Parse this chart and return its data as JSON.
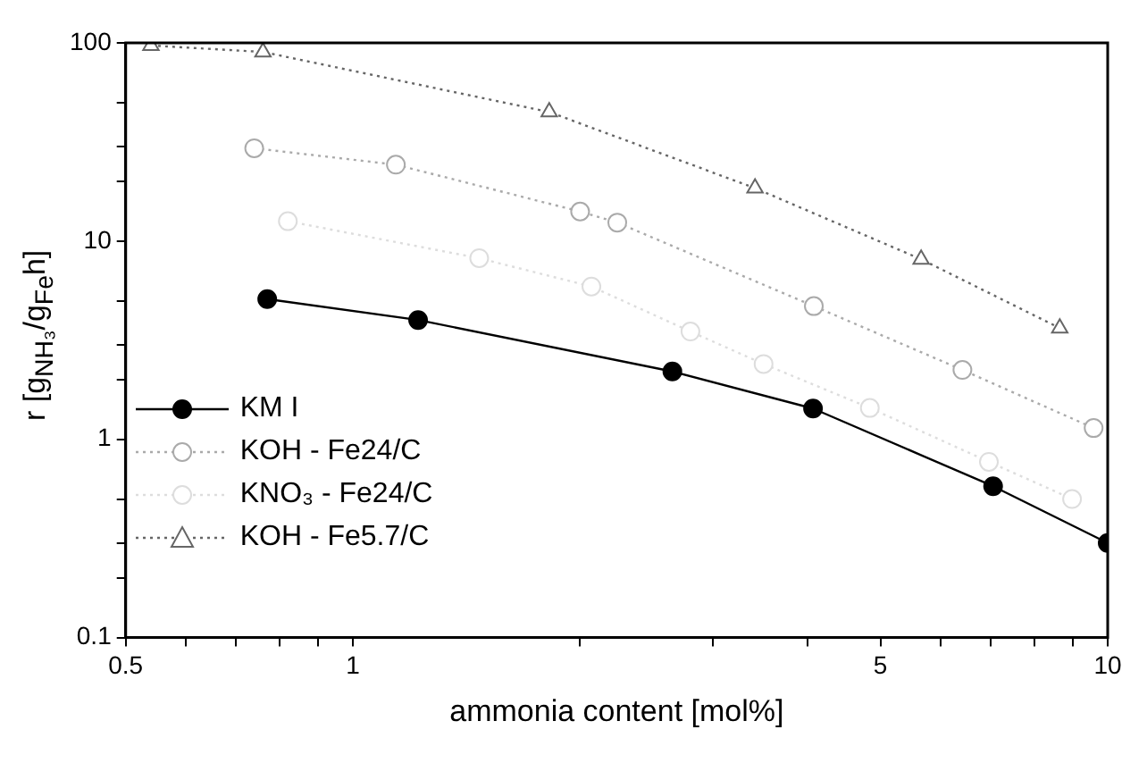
{
  "chart_data": {
    "type": "line",
    "xlabel": "ammonia content [mol%]",
    "ylabel": "r [g$_{NH₃}$/g$_{Fe}$h]",
    "log": "xy",
    "xlim": [
      0.5,
      10
    ],
    "xticks": [
      0.5,
      {
        "value": 0.6,
        "label": null
      },
      {
        "value": 0.7,
        "label": null
      },
      {
        "value": 0.8,
        "label": null
      },
      {
        "value": 0.9,
        "label": null
      },
      1,
      {
        "value": 2,
        "label": null
      },
      {
        "value": 3,
        "label": null
      },
      {
        "value": 4,
        "label": null
      },
      5,
      {
        "value": 6,
        "label": null
      },
      {
        "value": 7,
        "label": null
      },
      {
        "value": 8,
        "label": null
      },
      {
        "value": 9,
        "label": null
      },
      10
    ],
    "ylim": [
      0.1,
      100
    ],
    "yticks": [
      0.1,
      {
        "value": 0.2,
        "label": null
      },
      {
        "value": 0.3,
        "label": null
      },
      {
        "value": 0.5,
        "label": null
      },
      1,
      {
        "value": 2,
        "label": null
      },
      {
        "value": 3,
        "label": null
      },
      {
        "value": 5,
        "label": null
      },
      10,
      {
        "value": 20,
        "label": null
      },
      {
        "value": 30,
        "label": null
      },
      {
        "value": 50,
        "label": null
      },
      100
    ],
    "grid": false,
    "legend": "left",
    "series": [
      {
        "name": "KM I",
        "color": "#000000",
        "marker": "circle",
        "line_style": "solid",
        "x": [
          0.77,
          1.22,
          2.65,
          4.07,
          7.05,
          10
        ],
        "values": [
          5.1,
          4.0,
          2.2,
          1.43,
          0.58,
          0.3
        ]
      },
      {
        "name": "KOH - Fe24/C",
        "color": "#aaaaaa",
        "marker": "circle",
        "line_style": "dotted",
        "x": [
          0.74,
          1.14,
          2.0,
          2.24,
          4.08,
          6.42,
          9.58
        ],
        "values": [
          29.4,
          24.3,
          14.1,
          12.4,
          4.7,
          2.24,
          1.14
        ]
      },
      {
        "name": "KNO₃ - Fe24/C",
        "color": "#dddddd",
        "marker": "circle",
        "line_style": "dotted",
        "x": [
          0.82,
          1.47,
          2.07,
          2.8,
          3.5,
          4.84,
          6.96,
          8.97
        ],
        "values": [
          12.6,
          8.2,
          5.9,
          3.5,
          2.4,
          1.44,
          0.77,
          0.5
        ]
      },
      {
        "name": "KOH - Fe5.7/C",
        "color": "#666666",
        "marker": "triangle",
        "line_style": "dotted",
        "x": [
          0.54,
          0.76,
          1.82,
          3.41,
          5.66,
          8.64
        ],
        "values": [
          97,
          90,
          44.8,
          18.5,
          8.1,
          3.64
        ]
      }
    ]
  }
}
